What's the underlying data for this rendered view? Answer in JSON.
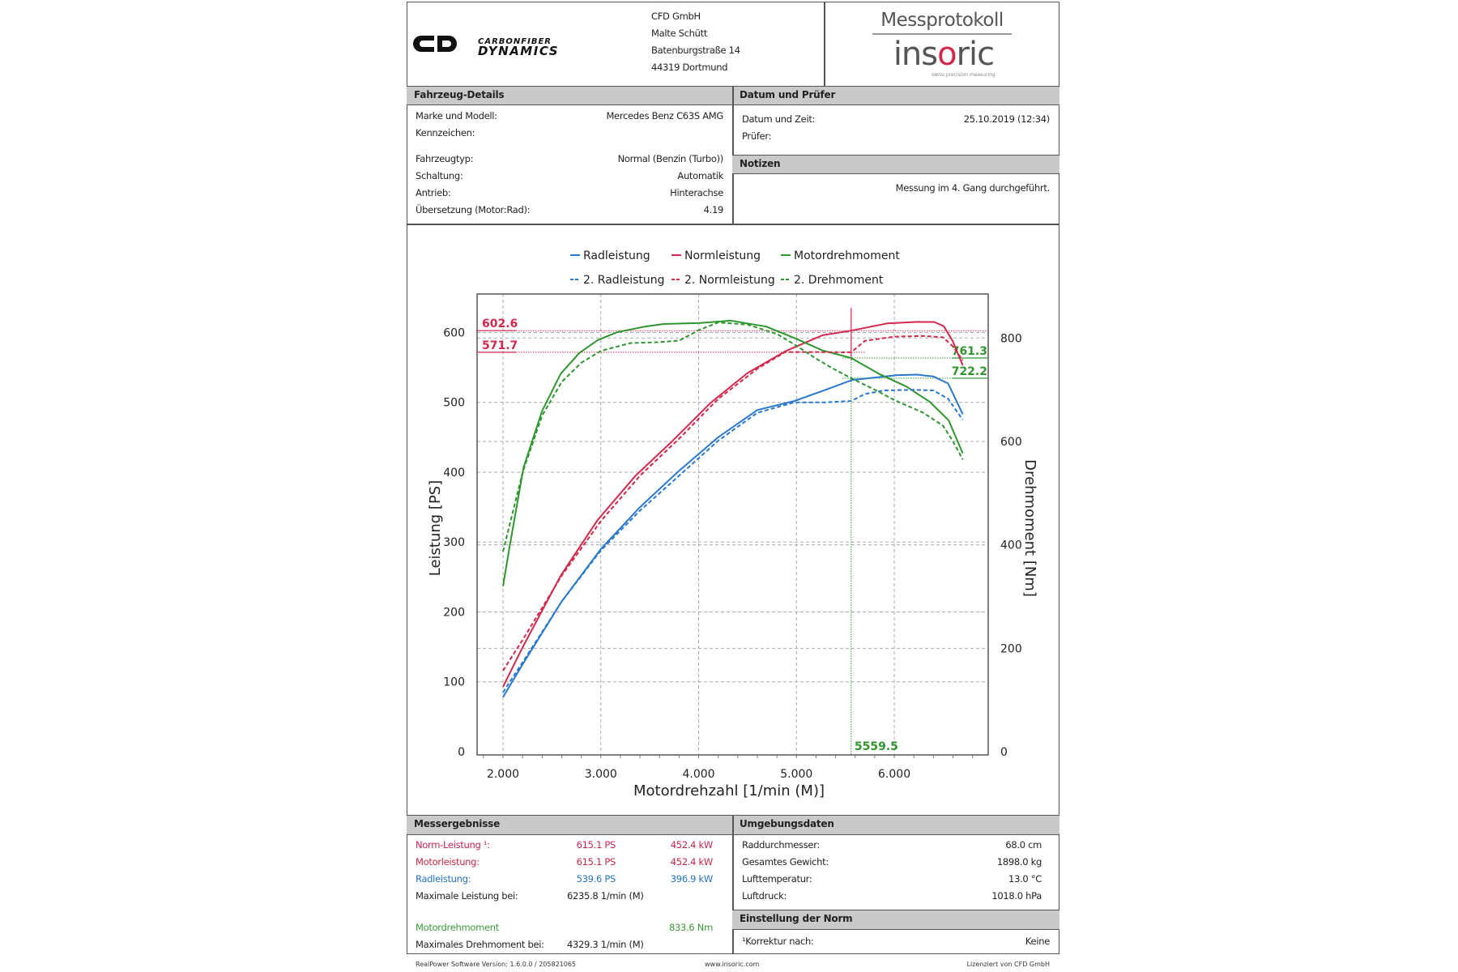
{
  "header": {
    "brand_logo_text": "CARBONFIBER DYNAMICS",
    "address": [
      "CFD GmbH",
      "Malte Schütt",
      "Batenburgstraße 14",
      "44319 Dortmund"
    ],
    "doc_title": "Messprotokoll",
    "insoric_logo": "insoric",
    "insoric_tagline": "swiss precision measuring"
  },
  "vehicle": {
    "title": "Fahrzeug-Details",
    "rows": [
      {
        "label": "Marke und Modell:",
        "value": "Mercedes Benz C63S AMG"
      },
      {
        "label": "Kennzeichen:",
        "value": ""
      },
      {
        "label": "Fahrzeugtyp:",
        "value": "Normal (Benzin (Turbo))"
      },
      {
        "label": "Schaltung:",
        "value": "Automatik"
      },
      {
        "label": "Antrieb:",
        "value": "Hinterachse"
      },
      {
        "label": "Übersetzung (Motor:Rad):",
        "value": "4.19"
      }
    ]
  },
  "date": {
    "title": "Datum und Prüfer",
    "rows": [
      {
        "label": "Datum und Zeit:",
        "value": "25.10.2019 (12:34)"
      },
      {
        "label": "Prüfer:",
        "value": ""
      }
    ]
  },
  "notes": {
    "title": "Notizen",
    "text": "Messung im 4. Gang durchgeführt."
  },
  "results": {
    "title": "Messergebnisse",
    "rows": [
      {
        "label": "Norm-Leistung ¹:",
        "ps": "615.1 PS",
        "kw": "452.4 kW"
      },
      {
        "label": "Motorleistung:",
        "ps": "615.1 PS",
        "kw": "452.4 kW"
      },
      {
        "label": "Radleistung:",
        "ps": "539.6 PS",
        "kw": "396.9 kW"
      },
      {
        "label": "Maximale Leistung bei:",
        "ps": "6235.8 1/min (M)",
        "kw": ""
      },
      {
        "label": "Motordrehmoment",
        "ps": "",
        "kw": "833.6 Nm"
      },
      {
        "label": "Maximales Drehmoment bei:",
        "ps": "4329.3 1/min (M)",
        "kw": ""
      }
    ]
  },
  "environment": {
    "title": "Umgebungsdaten",
    "rows": [
      {
        "label": "Raddurchmesser:",
        "value": "68.0 cm"
      },
      {
        "label": "Gesamtes Gewicht:",
        "value": "1898.0 kg"
      },
      {
        "label": "Lufttemperatur:",
        "value": "13.0 °C"
      },
      {
        "label": "Luftdruck:",
        "value": "1018.0 hPa"
      }
    ]
  },
  "norm": {
    "title": "Einstellung der Norm",
    "label": "¹Korrektur nach:",
    "value": "Keine"
  },
  "footer": {
    "version": "RealPower Software Version: 1.6.0.0 / 205821065",
    "website": "www.insoric.com",
    "license": "Lizenziert von CFD GmbH"
  },
  "colors": {
    "red": "#d2284c",
    "blue": "#2a78cc",
    "green": "#2f962f"
  },
  "chart_data": {
    "type": "line",
    "xlabel": "Motordrehzahl [1/min (M)]",
    "ylabel_left": "Leistung [PS]",
    "ylabel_right": "Drehmoment [Nm]",
    "xlim": [
      1735,
      6960
    ],
    "ylim_left": [
      0,
      655
    ],
    "ylim_right": [
      0,
      885
    ],
    "x_ticks": [
      2000,
      3000,
      4000,
      5000,
      6000
    ],
    "x_tick_labels": [
      "2.000",
      "3.000",
      "4.000",
      "5.000",
      "6.000"
    ],
    "y_left_ticks": [
      0,
      100,
      200,
      300,
      400,
      500,
      600
    ],
    "y_right_ticks": [
      0,
      200,
      400,
      600,
      800
    ],
    "grid": true,
    "legend_position": "top",
    "series": [
      {
        "name": "Radleistung",
        "axis": "left",
        "color": "#2a78cc",
        "dash": false,
        "x": [
          2000,
          2200,
          2600,
          3000,
          3400,
          3800,
          4200,
          4600,
          4980,
          5300,
          5570,
          6030,
          6235,
          6400,
          6550,
          6700
        ],
        "y": [
          78,
          125,
          215,
          290,
          350,
          402,
          450,
          489,
          502,
          518,
          532,
          539,
          539.6,
          537,
          527,
          483
        ]
      },
      {
        "name": "Normleistung",
        "axis": "left",
        "color": "#d2284c",
        "dash": false,
        "x": [
          2000,
          2210,
          2590,
          2970,
          3355,
          3735,
          4120,
          4500,
          4885,
          5265,
          5560,
          5930,
          6236,
          6410,
          6505,
          6600,
          6700
        ],
        "y": [
          93,
          152,
          252,
          332,
          395,
          445,
          499,
          542,
          573,
          596,
          602.6,
          613,
          615.1,
          615,
          609,
          587,
          553
        ]
      },
      {
        "name": "Motordrehmoment",
        "axis": "right",
        "color": "#2f962f",
        "dash": false,
        "x": [
          2000,
          2067,
          2210,
          2400,
          2590,
          2780,
          2970,
          3165,
          3450,
          3640,
          4020,
          4329,
          4690,
          4980,
          5265,
          5560,
          5840,
          6125,
          6360,
          6555,
          6700
        ],
        "y": [
          320,
          396,
          550,
          659,
          731,
          771,
          796,
          811,
          822,
          827,
          829,
          833.6,
          822,
          800,
          776,
          761.3,
          731,
          706,
          677,
          641,
          577
        ]
      },
      {
        "name": "2. Radleistung",
        "axis": "left",
        "color": "#2a78cc",
        "dash": true,
        "x": [
          2000,
          2200,
          2600,
          3000,
          3400,
          3800,
          4200,
          4600,
          4980,
          5300,
          5560,
          5700,
          5900,
          6200,
          6400,
          6550,
          6700
        ],
        "y": [
          85,
          128,
          215,
          288,
          345,
          395,
          445,
          485,
          500,
          500,
          502,
          512,
          517,
          518,
          517,
          505,
          475
        ]
      },
      {
        "name": "2. Normleistung",
        "axis": "left",
        "color": "#d2284c",
        "dash": true,
        "x": [
          2000,
          2200,
          2600,
          3000,
          3400,
          3800,
          4200,
          4600,
          4885,
          5100,
          5560,
          5700,
          6000,
          6300,
          6500,
          6600,
          6700
        ],
        "y": [
          116,
          160,
          252,
          330,
          395,
          448,
          505,
          548,
          572,
          572,
          571.7,
          588,
          594,
          595,
          593,
          580,
          560
        ]
      },
      {
        "name": "2. Drehmoment",
        "axis": "right",
        "color": "#2f962f",
        "dash": true,
        "x": [
          2000,
          2200,
          2400,
          2600,
          2800,
          3000,
          3300,
          3600,
          3800,
          4000,
          4200,
          4500,
          4800,
          5000,
          5200,
          5400,
          5560,
          5800,
          6000,
          6300,
          6500,
          6600,
          6700
        ],
        "y": [
          387,
          540,
          650,
          715,
          752,
          775,
          790,
          792,
          795,
          815,
          830,
          826,
          808,
          785,
          760,
          738,
          722.2,
          700,
          680,
          655,
          630,
          600,
          565
        ]
      }
    ],
    "annotations": [
      {
        "text": "602.6",
        "axis": "left",
        "value": 602.6,
        "color": "#d2284c",
        "side": "left"
      },
      {
        "text": "571.7",
        "axis": "left",
        "value": 571.7,
        "color": "#d2284c",
        "side": "left"
      },
      {
        "text": "761.3",
        "axis": "right",
        "value": 761.3,
        "color": "#2f962f",
        "side": "right"
      },
      {
        "text": "722.2",
        "axis": "right",
        "value": 722.2,
        "color": "#2f962f",
        "side": "right"
      },
      {
        "text": "5559.5",
        "axis": "x",
        "value": 5559.5,
        "color": "#2f962f",
        "side": "bottom"
      }
    ]
  }
}
